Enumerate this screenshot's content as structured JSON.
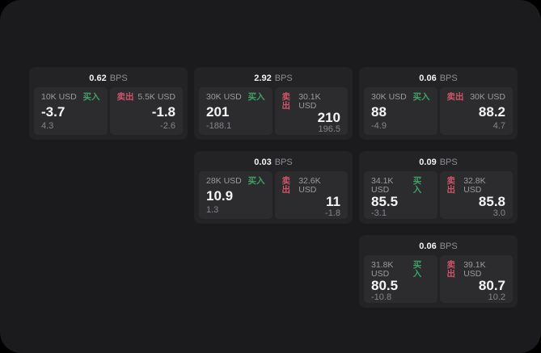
{
  "labels": {
    "bps_unit": "BPS",
    "buy_tag": "买入",
    "sell_tag": "卖出"
  },
  "colors": {
    "buy_green": "#3da365",
    "sell_red": "#d05468",
    "surface": "#1b1b1d",
    "card": "#232325",
    "panel": "#2c2c2e"
  },
  "cards": [
    {
      "bps": "0.62",
      "buy": {
        "amount": "10K USD",
        "value": "-3.7",
        "sub": "4.3"
      },
      "sell": {
        "amount": "5.5K USD",
        "value": "-1.8",
        "sub": "-2.6"
      }
    },
    {
      "bps": "2.92",
      "buy": {
        "amount": "30K USD",
        "value": "201",
        "sub": "-188.1"
      },
      "sell": {
        "amount": "30.1K USD",
        "value": "210",
        "sub": "196.5"
      }
    },
    {
      "bps": "0.06",
      "buy": {
        "amount": "30K USD",
        "value": "88",
        "sub": "-4.9"
      },
      "sell": {
        "amount": "30K USD",
        "value": "88.2",
        "sub": "4.7"
      }
    },
    {
      "bps": "0.03",
      "buy": {
        "amount": "28K USD",
        "value": "10.9",
        "sub": "1.3"
      },
      "sell": {
        "amount": "32.6K USD",
        "value": "11",
        "sub": "-1.8"
      }
    },
    {
      "bps": "0.09",
      "buy": {
        "amount": "34.1K USD",
        "value": "85.5",
        "sub": "-3.1"
      },
      "sell": {
        "amount": "32.8K USD",
        "value": "85.8",
        "sub": "3.0"
      }
    },
    {
      "bps": "0.06",
      "buy": {
        "amount": "31.8K USD",
        "value": "80.5",
        "sub": "-10.8"
      },
      "sell": {
        "amount": "39.1K USD",
        "value": "80.7",
        "sub": "10.2"
      }
    }
  ]
}
